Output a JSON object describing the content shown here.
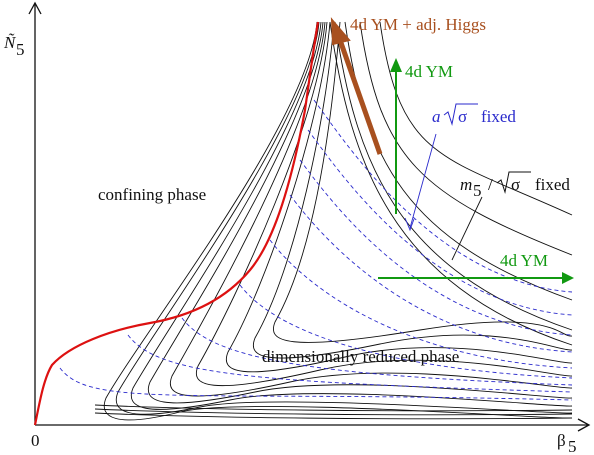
{
  "axes": {
    "y_label": "Ñ",
    "y_label_sub": "5",
    "x_label": "β",
    "x_label_sub": "5",
    "origin_label": "0"
  },
  "regions": {
    "confining": "confining phase",
    "reduced": "dimensionally reduced phase"
  },
  "annotations": {
    "higgs": "4d YM + adj. Higgs",
    "ym_vertical": "4d YM",
    "ym_horizontal": "4d YM",
    "a_sigma_var": "a",
    "a_sigma_rest": "fixed",
    "m5_var": "m",
    "m5_sub": "5",
    "m5_slash": "/",
    "m5_rest": "fixed",
    "sigma_symbol": "σ"
  },
  "colors": {
    "phase_boundary": "#dd1111",
    "black_curves": "#111111",
    "blue_dashed": "#2a2acc",
    "green_arrows": "#119911",
    "brown_arrow": "#a8501f"
  }
}
